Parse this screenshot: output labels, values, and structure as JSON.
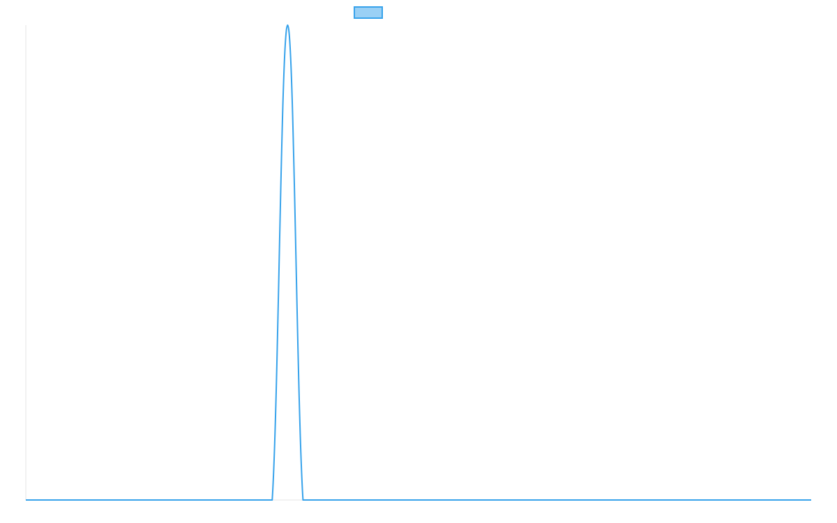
{
  "chart_data": {
    "type": "line",
    "title": "",
    "xlabel": "",
    "ylabel": "",
    "grid": false,
    "legend": {
      "position": "top-center",
      "entries": [
        {
          "label": ""
        }
      ]
    },
    "colors": {
      "series_stroke": "#36a2eb",
      "legend_fill": "#9ad0f5",
      "axis": "#e6e6e6"
    },
    "x": [
      0,
      1,
      2,
      3,
      4,
      5,
      6,
      7,
      8,
      9,
      10,
      11,
      12,
      13,
      14,
      15,
      16,
      17,
      18,
      19,
      20,
      21,
      22,
      23,
      24,
      25,
      26,
      27,
      28,
      29,
      30,
      31,
      32,
      33,
      34,
      35,
      36,
      37,
      38,
      39,
      40,
      41,
      42,
      43,
      44,
      45,
      46,
      47,
      48,
      49,
      50,
      51
    ],
    "xlim": [
      0,
      51
    ],
    "ylim": [
      0,
      1
    ],
    "series": [
      {
        "name": "",
        "values": [
          0,
          0,
          0,
          0,
          0,
          0,
          0,
          0,
          0,
          0,
          0,
          0,
          0,
          0,
          0,
          0,
          0,
          1,
          0,
          0,
          0,
          0,
          0,
          0,
          0,
          0,
          0,
          0,
          0,
          0,
          0,
          0,
          0,
          0,
          0,
          0,
          0,
          0,
          0,
          0,
          0,
          0,
          0,
          0,
          0,
          0,
          0,
          0,
          0,
          0,
          0,
          0
        ]
      }
    ]
  }
}
